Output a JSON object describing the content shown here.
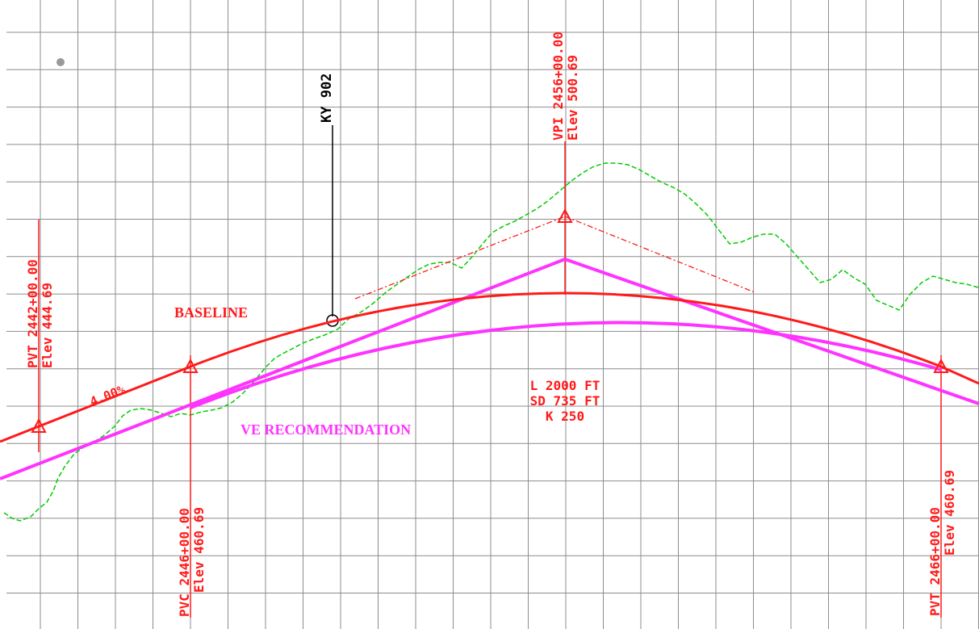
{
  "colors": {
    "grid": "#8c8c8c",
    "baseline": "#ff1a1a",
    "ve_recommendation": "#ff33ff",
    "ground": "#00cc00",
    "ky902": "#000000",
    "marker_dot": "#999999"
  },
  "labels": {
    "baseline": "BASELINE",
    "ve_recommendation": "VE RECOMMENDATION",
    "grade": "4.00%",
    "ky": "KY 902",
    "curve_l": "L 2000 FT",
    "curve_sd": "SD 735 FT",
    "curve_k": "K 250"
  },
  "stations": {
    "pvt_left": {
      "line1": "PVT 2442+00.00",
      "line2": "Elev 444.69"
    },
    "pvc": {
      "line1": "PVC 2446+00.00",
      "line2": "Elev 460.69"
    },
    "vpi": {
      "line1": "VPI 2456+00.00",
      "line2": "Elev 500.69"
    },
    "pvt_right": {
      "line1": "PVT 2466+00.00",
      "line2": "Elev 460.69"
    }
  }
}
